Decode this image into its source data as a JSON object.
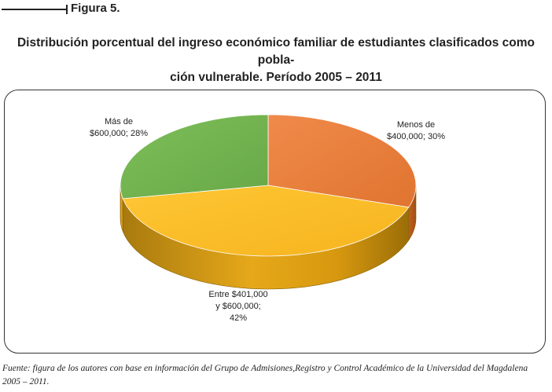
{
  "figure_label": "Figura 5.",
  "title_line1": "Distribución porcentual del ingreso económico familiar de estudiantes clasificados como pobla-",
  "title_line2": "ción vulnerable. Período 2005 – 2011",
  "source_line1": "Fuente: figura de los autores con base en información del Grupo de Admisiones,Registro y Control Académico de la Universidad del Magdalena",
  "source_line2": "2005 – 2011.",
  "chart_data": {
    "type": "pie",
    "slices": [
      {
        "label": "Menos de\n$400,000; 30%",
        "value": 30,
        "color": "#ee8040"
      },
      {
        "label": "Entre $401,000\ny $600,000;\n42%",
        "value": 42,
        "color": "#fbbd2c"
      },
      {
        "label": "Más de\n$600,000; 28%",
        "value": 28,
        "color": "#74b653"
      }
    ],
    "style": "3d"
  }
}
